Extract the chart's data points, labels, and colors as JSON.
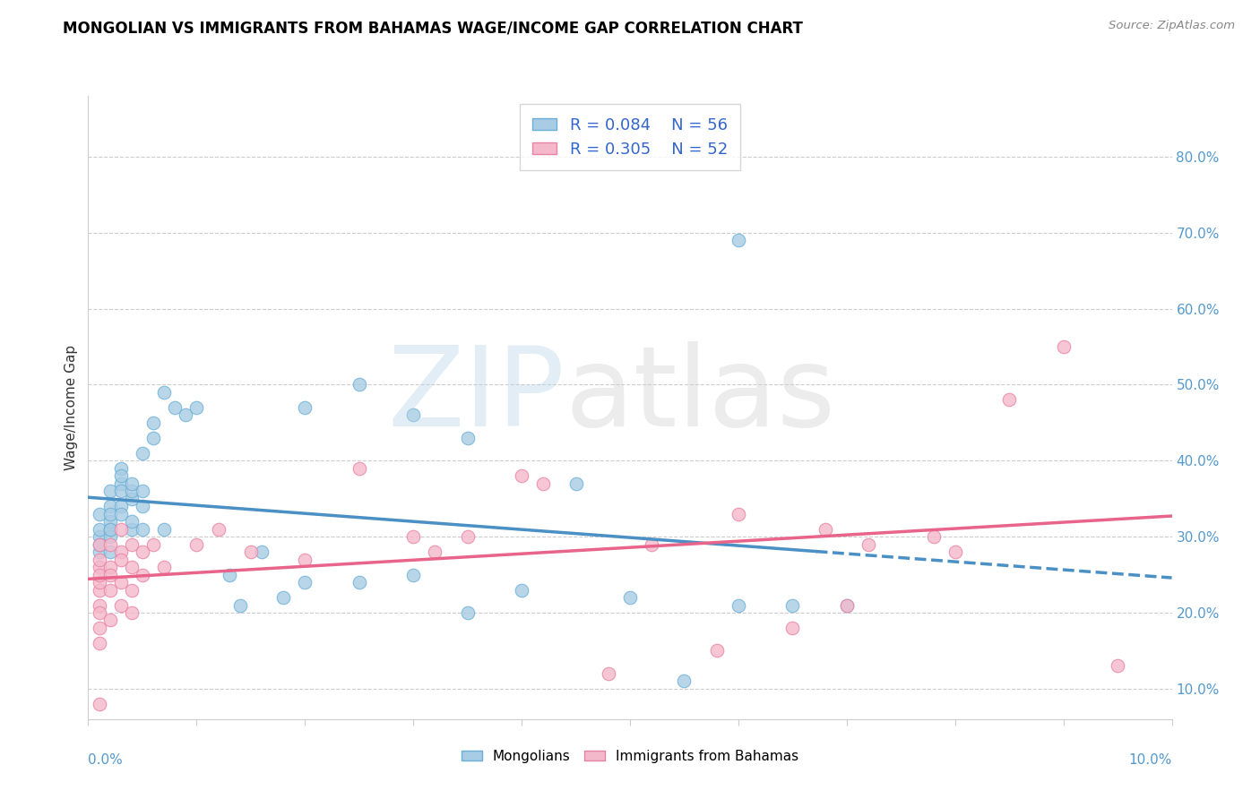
{
  "title": "MONGOLIAN VS IMMIGRANTS FROM BAHAMAS WAGE/INCOME GAP CORRELATION CHART",
  "source": "Source: ZipAtlas.com",
  "ylabel": "Wage/Income Gap",
  "legend_label1": "Mongolians",
  "legend_label2": "Immigrants from Bahamas",
  "blue_scatter_color": "#a8cce4",
  "pink_scatter_color": "#f4b8cb",
  "blue_edge_color": "#6aafd6",
  "pink_edge_color": "#e882a4",
  "blue_line_color": "#4a90c4",
  "pink_line_color": "#e8648a",
  "right_axis_color": "#5599cc",
  "legend_text_color": "#3366cc",
  "xlim": [
    0.0,
    0.1
  ],
  "ylim": [
    0.06,
    0.88
  ],
  "right_yticks": [
    0.1,
    0.2,
    0.3,
    0.4,
    0.5,
    0.6,
    0.7,
    0.8
  ],
  "right_yticklabels": [
    "10.0%",
    "20.0%",
    "30.0%",
    "40.0%",
    "50.0%",
    "60.0%",
    "70.0%",
    "80.0%"
  ],
  "mongolian_x": [
    0.001,
    0.001,
    0.001,
    0.001,
    0.001,
    0.002,
    0.002,
    0.002,
    0.002,
    0.002,
    0.002,
    0.002,
    0.002,
    0.003,
    0.003,
    0.003,
    0.003,
    0.003,
    0.003,
    0.004,
    0.004,
    0.004,
    0.004,
    0.004,
    0.005,
    0.005,
    0.005,
    0.005,
    0.006,
    0.006,
    0.007,
    0.007,
    0.008,
    0.009,
    0.01,
    0.013,
    0.014,
    0.016,
    0.018,
    0.02,
    0.025,
    0.03,
    0.035,
    0.04,
    0.045,
    0.05,
    0.055,
    0.06,
    0.06,
    0.065,
    0.07,
    0.02,
    0.025,
    0.03,
    0.035
  ],
  "mongolian_y": [
    0.33,
    0.3,
    0.28,
    0.31,
    0.29,
    0.34,
    0.36,
    0.31,
    0.3,
    0.28,
    0.32,
    0.33,
    0.31,
    0.34,
    0.37,
    0.39,
    0.36,
    0.33,
    0.38,
    0.35,
    0.36,
    0.31,
    0.32,
    0.37,
    0.34,
    0.36,
    0.41,
    0.31,
    0.43,
    0.45,
    0.49,
    0.31,
    0.47,
    0.46,
    0.47,
    0.25,
    0.21,
    0.28,
    0.22,
    0.24,
    0.24,
    0.25,
    0.2,
    0.23,
    0.37,
    0.22,
    0.11,
    0.21,
    0.69,
    0.21,
    0.21,
    0.47,
    0.5,
    0.46,
    0.43
  ],
  "bahamas_x": [
    0.001,
    0.001,
    0.001,
    0.001,
    0.001,
    0.001,
    0.001,
    0.001,
    0.001,
    0.002,
    0.002,
    0.002,
    0.002,
    0.002,
    0.003,
    0.003,
    0.003,
    0.003,
    0.003,
    0.004,
    0.004,
    0.004,
    0.004,
    0.005,
    0.005,
    0.006,
    0.007,
    0.01,
    0.012,
    0.015,
    0.02,
    0.025,
    0.03,
    0.032,
    0.035,
    0.04,
    0.042,
    0.048,
    0.052,
    0.058,
    0.06,
    0.065,
    0.068,
    0.07,
    0.072,
    0.078,
    0.08,
    0.085,
    0.09,
    0.095,
    0.001,
    0.001
  ],
  "bahamas_y": [
    0.29,
    0.26,
    0.23,
    0.21,
    0.27,
    0.24,
    0.2,
    0.25,
    0.18,
    0.29,
    0.26,
    0.23,
    0.25,
    0.19,
    0.28,
    0.31,
    0.24,
    0.27,
    0.21,
    0.26,
    0.29,
    0.23,
    0.2,
    0.28,
    0.25,
    0.29,
    0.26,
    0.29,
    0.31,
    0.28,
    0.27,
    0.39,
    0.3,
    0.28,
    0.3,
    0.38,
    0.37,
    0.12,
    0.29,
    0.15,
    0.33,
    0.18,
    0.31,
    0.21,
    0.29,
    0.3,
    0.28,
    0.48,
    0.55,
    0.13,
    0.16,
    0.08
  ]
}
